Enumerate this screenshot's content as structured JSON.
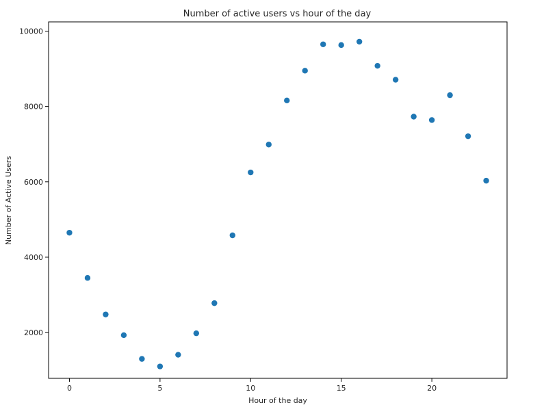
{
  "chart_data": {
    "type": "scatter",
    "title": "Number of active users vs hour of the day",
    "xlabel": "Hour of the day",
    "ylabel": "Number of Active Users",
    "x": [
      0,
      1,
      2,
      3,
      4,
      5,
      6,
      7,
      8,
      9,
      10,
      11,
      12,
      13,
      14,
      15,
      16,
      17,
      18,
      19,
      20,
      21,
      22,
      23
    ],
    "y": [
      4650,
      3450,
      2480,
      1930,
      1300,
      1100,
      1410,
      1980,
      2780,
      4580,
      6250,
      6990,
      8160,
      8950,
      9650,
      9630,
      9720,
      9080,
      8710,
      7730,
      7640,
      8300,
      7210,
      6030
    ],
    "xlim": [
      -1.15,
      24.15
    ],
    "ylim": [
      785,
      10245
    ],
    "xticks": [
      0,
      5,
      10,
      15,
      20
    ],
    "xtick_labels": [
      "0",
      "5",
      "10",
      "15",
      "20"
    ],
    "yticks": [
      2000,
      4000,
      6000,
      8000,
      10000
    ],
    "ytick_labels": [
      "2000",
      "4000",
      "6000",
      "8000",
      "10000"
    ],
    "color": "#1f77b4",
    "grid": false
  }
}
